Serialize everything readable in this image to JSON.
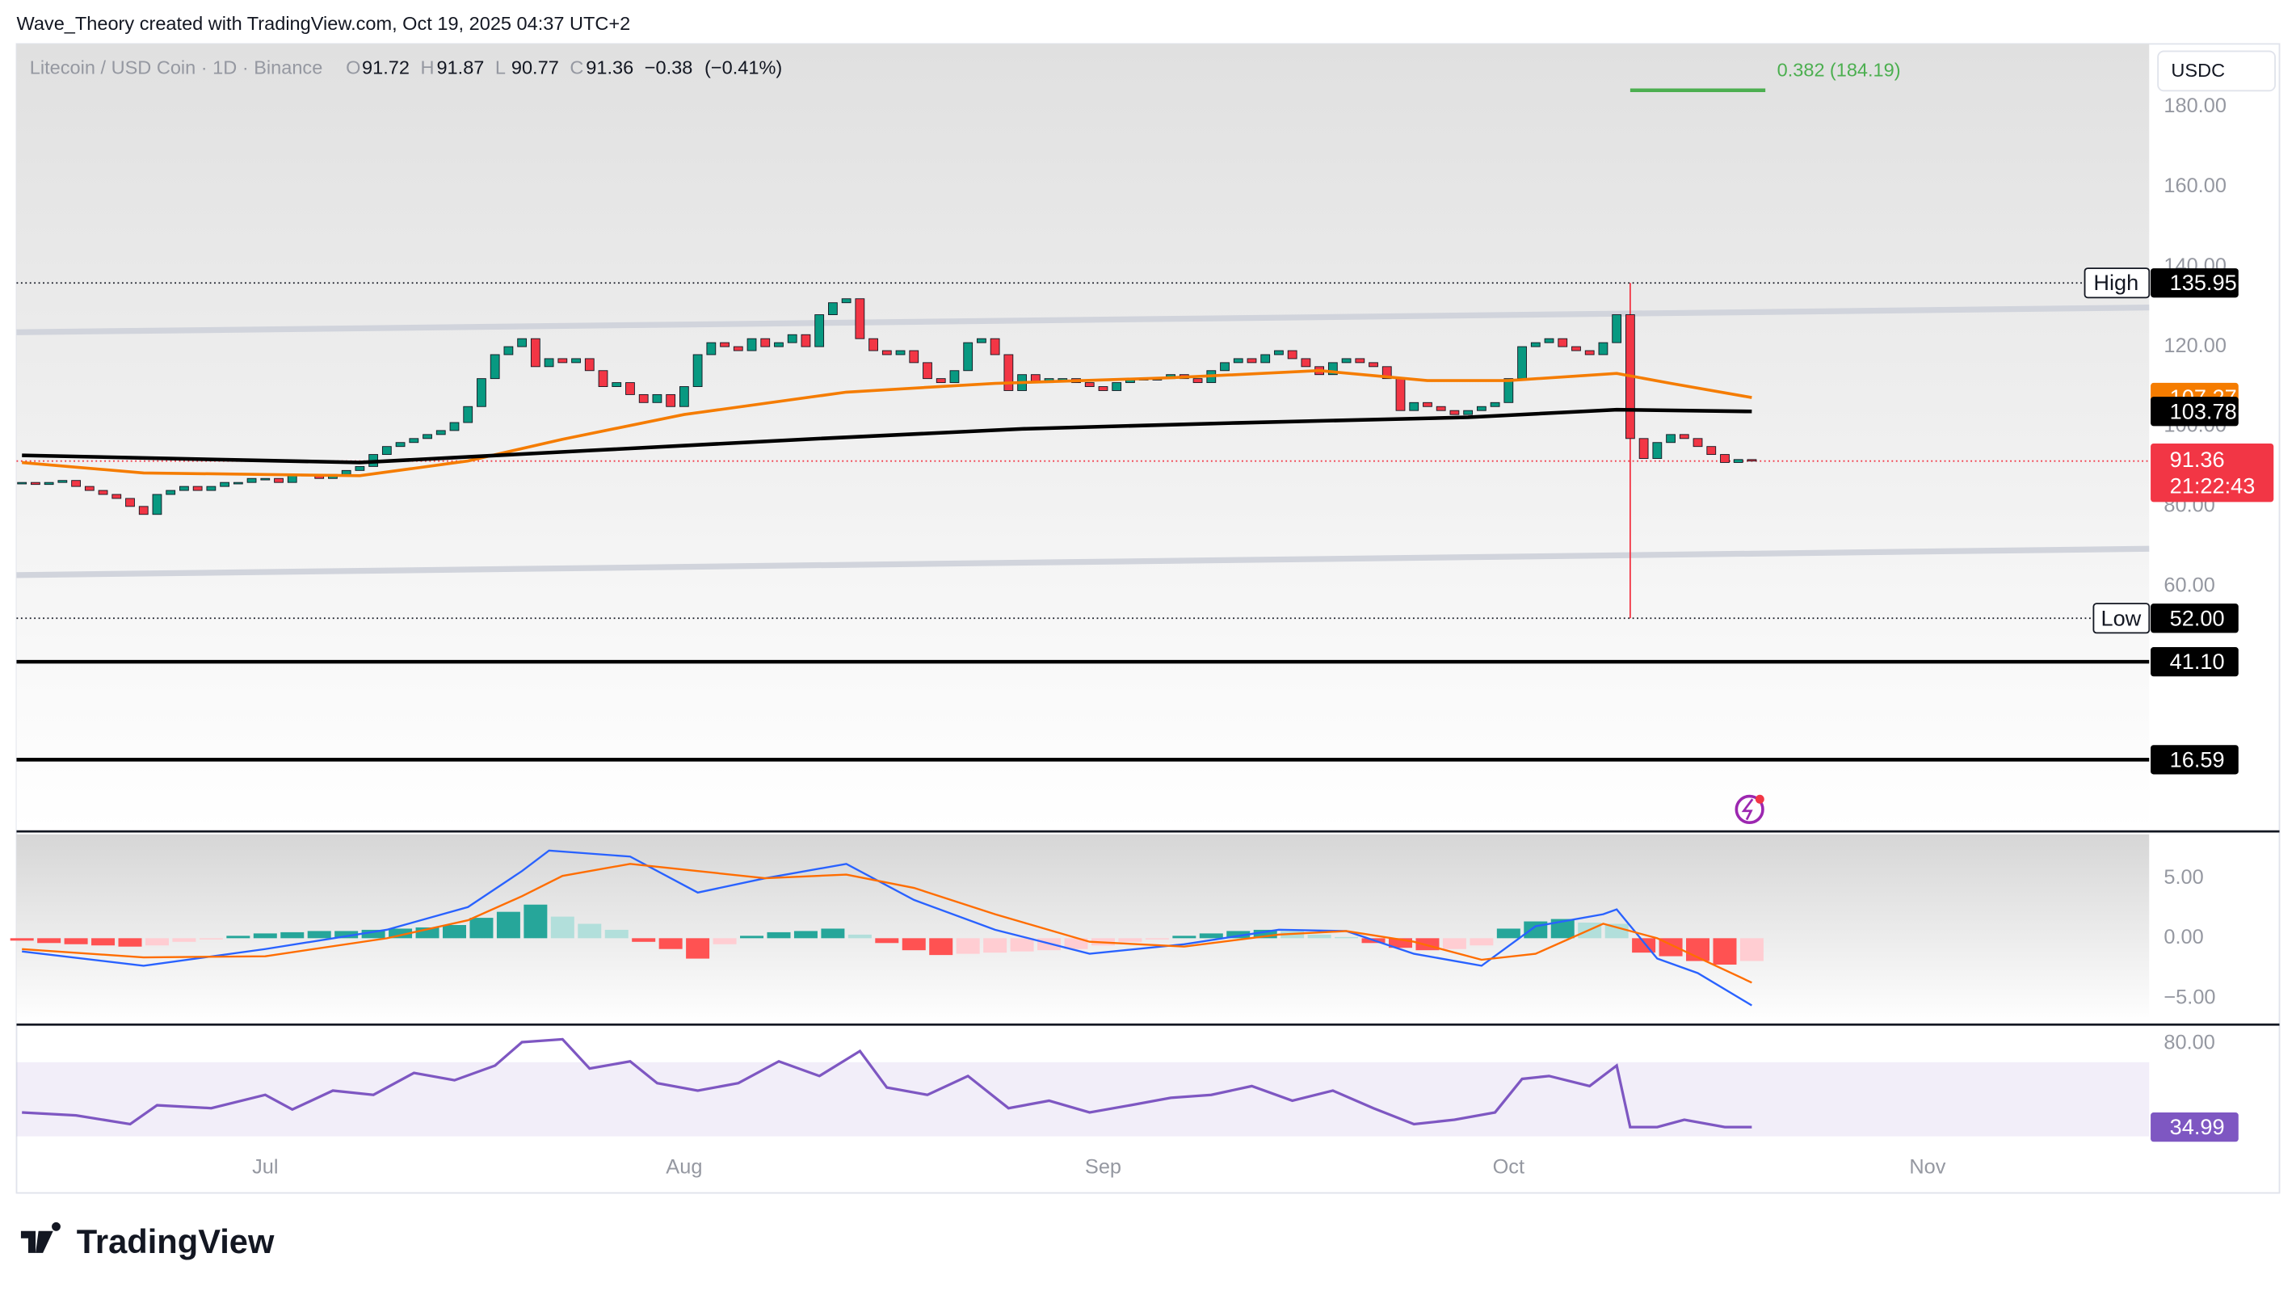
{
  "header": "Wave_Theory created with TradingView.com, Oct 19, 2025 04:37 UTC+2",
  "brand": "TradingView",
  "chart_data": {
    "type": "candlestick",
    "title": "Litecoin / USD Coin · 1D · Binance",
    "legend": [
      {
        "label": "O",
        "value": 91.72
      },
      {
        "label": "H",
        "value": 91.87
      },
      {
        "label": "L",
        "value": 90.77
      },
      {
        "label": "C",
        "value": 91.36
      }
    ],
    "change": {
      "value": -0.38,
      "label": "−0.38"
    },
    "change_percent": {
      "value": -0.41,
      "label": "(−0.41%)"
    },
    "currency": "USDC",
    "xlim": [
      -0.4,
      157.4
    ],
    "xticks": [
      {
        "value": 18,
        "label": "Jul"
      },
      {
        "value": 49,
        "label": "Aug"
      },
      {
        "value": 80,
        "label": "Sep"
      },
      {
        "value": 110,
        "label": "Oct"
      },
      {
        "value": 141,
        "label": "Nov"
      }
    ],
    "ylim": [
      -1,
      195.8
    ],
    "yticks": [
      {
        "value": 60,
        "label": "60.00"
      },
      {
        "value": 80,
        "label": "80.00"
      },
      {
        "value": 100,
        "label": "100.00"
      },
      {
        "value": 120,
        "label": "120.00"
      },
      {
        "value": 140,
        "label": "140.00"
      },
      {
        "value": 160,
        "label": "160.00"
      },
      {
        "value": 180,
        "label": "180.00"
      }
    ],
    "up_color": "#089981",
    "down_color": "#f23645",
    "closes": [
      86,
      85.5,
      86,
      86.5,
      85,
      84,
      83,
      82,
      80,
      78,
      83,
      84,
      85,
      84,
      85,
      86,
      86,
      87,
      87,
      86,
      88,
      88,
      87,
      88,
      89,
      90,
      93,
      95,
      96,
      97,
      98,
      99,
      101,
      105,
      112,
      118,
      120,
      122,
      115,
      117,
      116,
      117,
      114,
      110,
      111,
      108,
      106,
      108,
      105,
      110,
      118,
      121,
      120,
      119,
      122,
      120,
      121,
      123,
      120,
      128,
      131,
      132,
      122,
      119,
      118,
      119,
      116,
      112,
      111,
      114,
      121,
      122,
      118,
      109,
      113,
      111,
      112,
      112,
      111,
      110,
      109,
      111,
      112,
      112,
      112,
      113,
      112,
      111,
      114,
      116,
      117,
      116,
      118,
      119,
      117,
      115,
      113,
      116,
      117,
      116,
      115,
      112,
      104,
      106,
      105,
      104,
      103,
      104,
      105,
      106,
      112,
      120,
      121,
      122,
      120,
      119,
      118,
      121,
      128,
      97,
      92,
      96,
      98,
      97,
      95,
      93,
      91,
      91.74,
      91.36
    ],
    "ema50": {
      "color": "#f57c00",
      "x": [
        0,
        9,
        25,
        33,
        40,
        49,
        61,
        72,
        85,
        96,
        104,
        110,
        118,
        122,
        128
      ],
      "values": [
        91,
        88.4,
        87.7,
        91.4,
        96.8,
        103,
        108.6,
        110.8,
        112.2,
        114,
        111.5,
        111.5,
        113.3,
        110.8,
        107.27
      ],
      "last": {
        "value": 107.27,
        "label": "107.27"
      }
    },
    "ema200": {
      "color": "#000000",
      "x": [
        0,
        25,
        42,
        58,
        74,
        90,
        107,
        118,
        128
      ],
      "values": [
        92.8,
        91,
        94,
        96.8,
        99.4,
        100.9,
        102.3,
        104.2,
        103.78
      ],
      "last": {
        "value": 103.78,
        "label": "103.78"
      }
    },
    "channel": [
      {
        "x": [
          -0.4,
          157.4
        ],
        "values": [
          123.6,
          129.8
        ]
      },
      {
        "x": [
          -0.4,
          157.4
        ],
        "values": [
          62.8,
          69.4
        ]
      }
    ],
    "channel_color": "#d1d4dc",
    "high": {
      "name": "High",
      "x": 119,
      "value": {
        "value": 135.95,
        "label": "135.95"
      }
    },
    "low": {
      "name": "Low",
      "x": 119,
      "value": {
        "value": 52,
        "label": "52.00"
      }
    },
    "levels": [
      {
        "value": 41.1,
        "label": "41.10"
      },
      {
        "value": 16.59,
        "label": "16.59"
      }
    ],
    "fib": {
      "ratio": {
        "value": 0.382,
        "label": "0.382"
      },
      "price": {
        "value": 184.19,
        "label": "(184.19)"
      },
      "x": [
        119,
        129
      ],
      "color": "#4caf50"
    },
    "last_price": {
      "value": 91.36,
      "label": "91.36"
    },
    "countdown": "21:22:43",
    "macd": {
      "ylim": [
        -7.2,
        8.66
      ],
      "yticks": [
        {
          "value": 5,
          "label": "5.00"
        },
        {
          "value": 0,
          "label": "0.00"
        },
        {
          "value": -5,
          "label": "−5.00"
        }
      ],
      "macd": {
        "color": "#2962ff",
        "x": [
          0,
          9,
          18,
          27,
          33,
          37,
          39,
          45,
          50,
          55,
          61,
          66,
          72,
          79,
          86,
          93,
          98,
          103,
          108,
          112,
          117,
          118,
          121,
          124,
          128
        ],
        "values": [
          -1.1,
          -2.3,
          -0.9,
          0.7,
          2.6,
          5.6,
          7.3,
          6.8,
          3.8,
          5,
          6.2,
          3.2,
          0.7,
          -1.3,
          -0.5,
          0.7,
          0.6,
          -1.3,
          -2.3,
          1,
          2,
          2.4,
          -1.7,
          -2.9,
          -5.6
        ]
      },
      "signal": {
        "color": "#ff6d00",
        "x": [
          0,
          9,
          18,
          27,
          33,
          37,
          40,
          45,
          50,
          55,
          61,
          66,
          72,
          79,
          86,
          93,
          98,
          103,
          108,
          112,
          117,
          121,
          124,
          128
        ],
        "values": [
          -0.9,
          -1.6,
          -1.5,
          0,
          1.5,
          3.5,
          5.2,
          6.2,
          5.6,
          5,
          5.3,
          4.2,
          2,
          -0.3,
          -0.7,
          0.3,
          0.6,
          -0.3,
          -1.8,
          -1.3,
          1.2,
          0,
          -1.6,
          -3.7
        ]
      },
      "histogram": {
        "x": [
          0,
          2,
          4,
          6,
          8,
          10,
          12,
          14,
          16,
          18,
          20,
          22,
          24,
          26,
          28,
          30,
          32,
          34,
          36,
          38,
          40,
          42,
          44,
          46,
          48,
          50,
          52,
          54,
          56,
          58,
          60,
          62,
          64,
          66,
          68,
          70,
          72,
          74,
          76,
          78,
          80,
          82,
          84,
          86,
          88,
          90,
          92,
          94,
          96,
          98,
          100,
          102,
          104,
          106,
          108,
          110,
          112,
          114,
          116,
          118,
          120,
          122,
          124,
          126,
          128
        ],
        "values": [
          -0.2,
          -0.4,
          -0.5,
          -0.6,
          -0.7,
          -0.6,
          -0.3,
          -0.1,
          0.2,
          0.4,
          0.5,
          0.6,
          0.6,
          0.7,
          0.8,
          0.9,
          1.1,
          1.7,
          2.2,
          2.8,
          1.8,
          1.2,
          0.7,
          -0.3,
          -0.9,
          -1.7,
          -0.5,
          0.2,
          0.5,
          0.6,
          0.8,
          0.3,
          -0.4,
          -1,
          -1.4,
          -1.3,
          -1.2,
          -1.1,
          -1,
          -0.9,
          -0.6,
          -0.3,
          -0.1,
          0.2,
          0.4,
          0.6,
          0.7,
          0.6,
          0.3,
          0.1,
          -0.4,
          -0.8,
          -1,
          -0.9,
          -0.6,
          0.8,
          1.4,
          1.6,
          1.3,
          1.2,
          -1.2,
          -1.5,
          -1.9,
          -2.2,
          -1.9
        ]
      }
    },
    "rsi": {
      "ylim": [
        28.7,
        88.7
      ],
      "yticks": [
        {
          "value": 80,
          "label": "80.00"
        }
      ],
      "band": [
        30,
        70
      ],
      "color": "#7e57c2",
      "x": [
        0,
        4,
        8,
        10,
        14,
        18,
        20,
        23,
        26,
        29,
        32,
        35,
        37,
        40,
        42,
        45,
        47,
        50,
        53,
        56,
        59,
        62,
        64,
        67,
        70,
        73,
        76,
        79,
        82,
        85,
        88,
        91,
        94,
        97,
        100,
        103,
        106,
        109,
        111,
        113,
        116,
        118,
        119,
        121,
        123,
        126,
        128
      ],
      "values": [
        42.9,
        41.3,
        36.6,
        46.8,
        45.2,
        52.4,
        44.5,
        54.7,
        52.4,
        64.2,
        60.3,
        68.2,
        80.8,
        82.4,
        66.6,
        70.5,
        58.7,
        54.7,
        58.7,
        70.5,
        62.6,
        76,
        56.3,
        52.4,
        62.6,
        45.2,
        49.2,
        42.9,
        46.8,
        50.8,
        52.4,
        57.1,
        49.2,
        54.7,
        45.2,
        36.6,
        39,
        42.9,
        61,
        62.6,
        57.1,
        68.2,
        35,
        35,
        39,
        35,
        34.99
      ],
      "last": {
        "value": 34.99,
        "label": "34.99"
      }
    }
  }
}
